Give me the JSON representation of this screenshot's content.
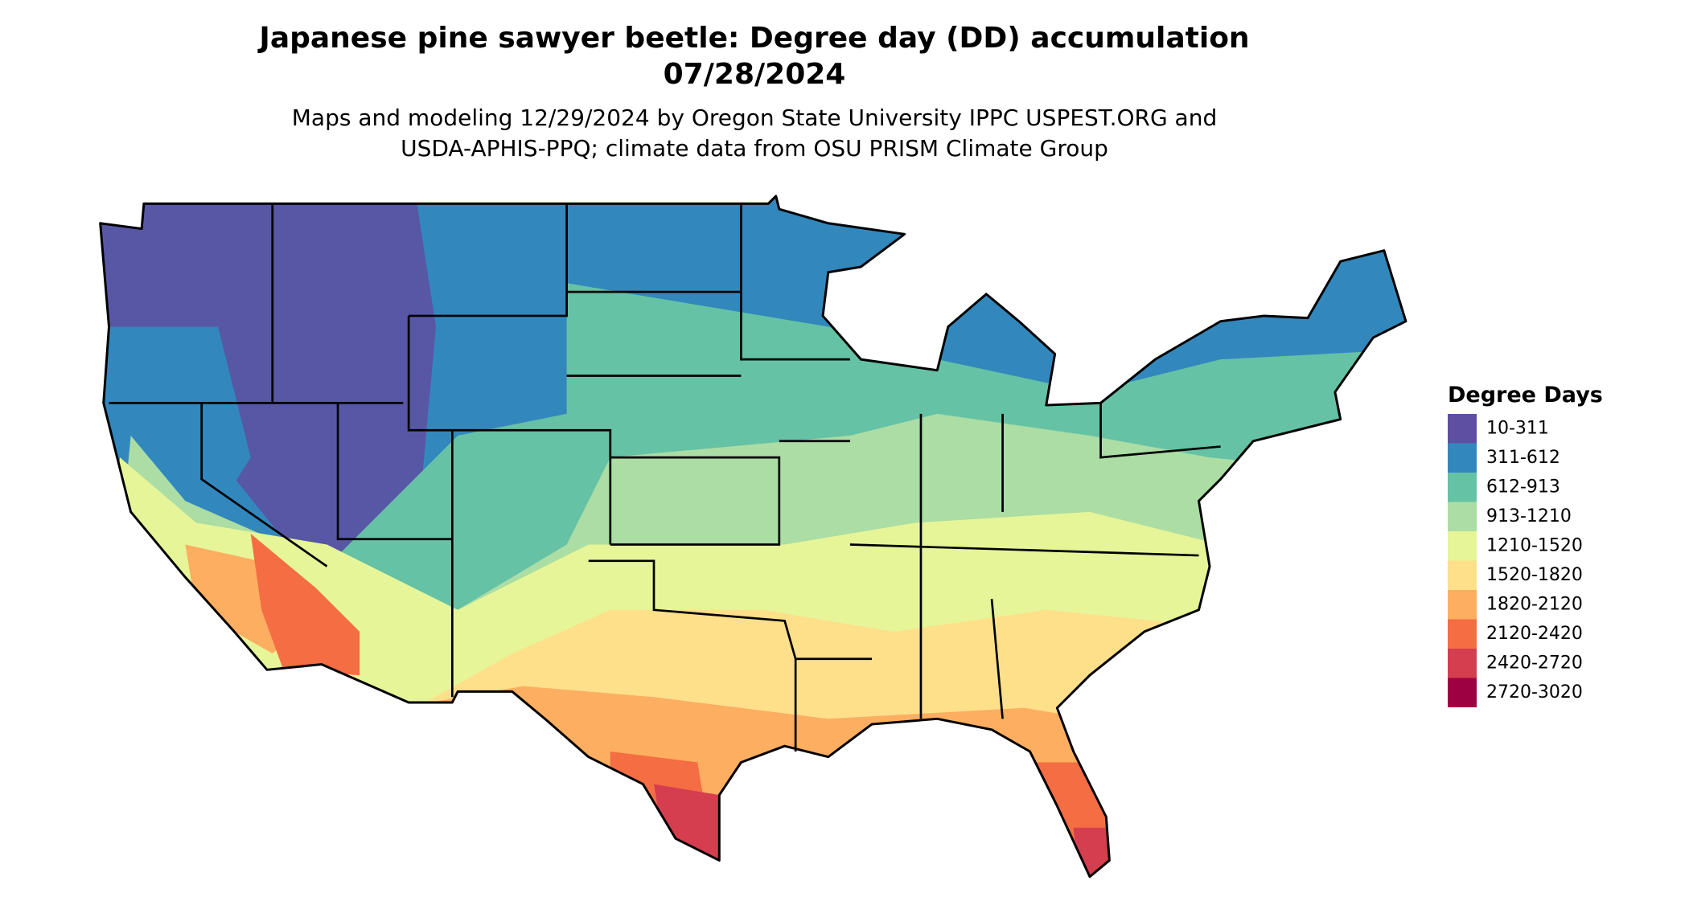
{
  "header": {
    "title": "Japanese pine sawyer beetle: Degree day (DD) accumulation",
    "date": "07/28/2024",
    "subtitle": [
      "Maps and modeling 12/29/2024 by Oregon State University IPPC USPEST.ORG and",
      "USDA-APHIS-PPQ; climate data from OSU PRISM Climate Group"
    ]
  },
  "legend": {
    "title": "Degree Days",
    "items": [
      {
        "label": "10-311",
        "color": "#5e4fa2"
      },
      {
        "label": "311-612",
        "color": "#3288bd"
      },
      {
        "label": "612-913",
        "color": "#66c2a5"
      },
      {
        "label": "913-1210",
        "color": "#abdda4"
      },
      {
        "label": "1210-1520",
        "color": "#e6f598"
      },
      {
        "label": "1520-1820",
        "color": "#fee08b"
      },
      {
        "label": "1820-2120",
        "color": "#fdae61"
      },
      {
        "label": "2120-2420",
        "color": "#f46d43"
      },
      {
        "label": "2420-2720",
        "color": "#d53e4f"
      },
      {
        "label": "2720-3020",
        "color": "#9e0142"
      }
    ]
  }
}
